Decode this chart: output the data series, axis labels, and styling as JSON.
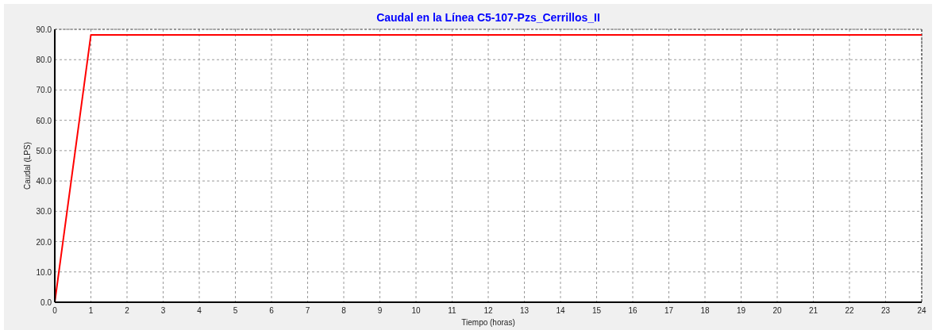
{
  "chart_data": {
    "type": "line",
    "title": "Caudal en la Línea C5-107-Pzs_Cerrillos_II",
    "xlabel": "Tiempo (horas)",
    "ylabel": "Caudal (LPS)",
    "x": [
      0,
      1,
      24
    ],
    "series": [
      {
        "color": "#ff0000",
        "values": [
          0,
          88.2,
          88.2
        ]
      }
    ],
    "xlim": [
      0,
      24
    ],
    "xticks": [
      0,
      1,
      2,
      3,
      4,
      5,
      6,
      7,
      8,
      9,
      10,
      11,
      12,
      13,
      14,
      15,
      16,
      17,
      18,
      19,
      20,
      21,
      22,
      23,
      24
    ],
    "ylim": [
      0,
      90
    ],
    "yticks": [
      {
        "value": 0,
        "label": "0.0"
      },
      {
        "value": 10,
        "label": "10.0"
      },
      {
        "value": 20,
        "label": "20.0"
      },
      {
        "value": 30,
        "label": "30.0"
      },
      {
        "value": 40,
        "label": "40.0"
      },
      {
        "value": 50,
        "label": "50.0"
      },
      {
        "value": 60,
        "label": "60.0"
      },
      {
        "value": 70,
        "label": "70.0"
      },
      {
        "value": 80,
        "label": "80.0"
      },
      {
        "value": 90,
        "label": "90.0"
      }
    ],
    "grid": true,
    "line_style": "solid"
  }
}
